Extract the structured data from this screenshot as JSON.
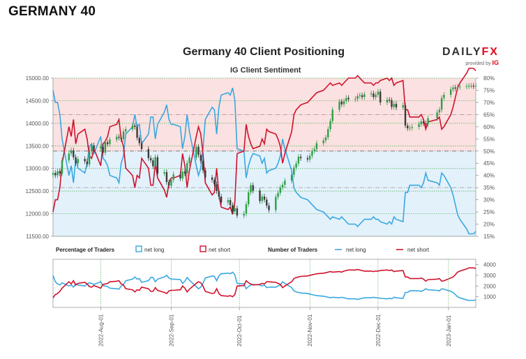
{
  "page": {
    "heading": "GERMANY 40"
  },
  "brand": {
    "word_left": "DAILY",
    "word_right": "FX",
    "provided_by": "provided by",
    "ig": "IG"
  },
  "colors": {
    "long": "#38a8e0",
    "short": "#d0112b",
    "bull": "#2f9e44",
    "bear": "#3a3a3a",
    "long_zone": "#e3f1fb",
    "short_zone": "#fbe1e1",
    "grid_green": "#4caf50"
  },
  "chart_data": [
    {
      "type": "line",
      "title": "Germany 40 Client Positioning",
      "subtitle": "IG Client Sentiment",
      "x_dates": [
        "2022-07-11",
        "2022-07-12",
        "2022-07-13",
        "2022-07-14",
        "2022-07-15",
        "2022-07-18",
        "2022-07-19",
        "2022-07-20",
        "2022-07-21",
        "2022-07-22",
        "2022-07-25",
        "2022-07-26",
        "2022-07-27",
        "2022-07-28",
        "2022-07-29",
        "2022-08-01",
        "2022-08-02",
        "2022-08-03",
        "2022-08-04",
        "2022-08-05",
        "2022-08-08",
        "2022-08-09",
        "2022-08-10",
        "2022-08-11",
        "2022-08-12",
        "2022-08-15",
        "2022-08-16",
        "2022-08-17",
        "2022-08-18",
        "2022-08-19",
        "2022-08-22",
        "2022-08-23",
        "2022-08-24",
        "2022-08-25",
        "2022-08-26",
        "2022-08-29",
        "2022-08-30",
        "2022-08-31",
        "2022-09-01",
        "2022-09-02",
        "2022-09-05",
        "2022-09-06",
        "2022-09-07",
        "2022-09-08",
        "2022-09-09",
        "2022-09-12",
        "2022-09-13",
        "2022-09-14",
        "2022-09-15",
        "2022-09-16",
        "2022-09-19",
        "2022-09-20",
        "2022-09-21",
        "2022-09-22",
        "2022-09-23",
        "2022-09-26",
        "2022-09-27",
        "2022-09-28",
        "2022-09-29",
        "2022-09-30",
        "2022-10-03",
        "2022-10-04",
        "2022-10-05",
        "2022-10-06",
        "2022-10-07",
        "2022-10-10",
        "2022-10-11",
        "2022-10-12",
        "2022-10-13",
        "2022-10-14",
        "2022-10-17",
        "2022-10-18",
        "2022-10-19",
        "2022-10-20",
        "2022-10-21",
        "2022-10-24",
        "2022-10-25",
        "2022-10-26",
        "2022-10-27",
        "2022-10-28",
        "2022-10-31",
        "2022-11-01",
        "2022-11-02",
        "2022-11-03",
        "2022-11-04",
        "2022-11-07",
        "2022-11-08",
        "2022-11-09",
        "2022-11-10",
        "2022-11-11",
        "2022-11-14",
        "2022-11-15",
        "2022-11-16",
        "2022-11-17",
        "2022-11-18",
        "2022-11-21",
        "2022-11-22",
        "2022-11-23",
        "2022-11-24",
        "2022-11-25",
        "2022-11-28",
        "2022-11-29",
        "2022-11-30",
        "2022-12-01",
        "2022-12-02",
        "2022-12-05",
        "2022-12-06",
        "2022-12-07",
        "2022-12-08",
        "2022-12-09",
        "2022-12-12",
        "2022-12-13",
        "2022-12-14",
        "2022-12-15",
        "2022-12-16",
        "2022-12-19",
        "2022-12-20",
        "2022-12-21",
        "2022-12-22",
        "2022-12-23",
        "2022-12-27",
        "2022-12-28",
        "2022-12-29",
        "2022-12-30",
        "2023-01-02",
        "2023-01-03",
        "2023-01-04",
        "2023-01-05",
        "2023-01-06",
        "2023-01-09",
        "2023-01-10",
        "2023-01-11",
        "2023-01-12",
        "2023-01-13"
      ],
      "x_ticks": [
        "2022-Aug-01",
        "2022-Sep-01",
        "2022-Oct-01",
        "2022-Nov-01",
        "2022-Dec-01",
        "2023-Jan-01"
      ],
      "x_tick_dates": [
        "2022-08-01",
        "2022-09-01",
        "2022-10-01",
        "2022-11-01",
        "2022-12-01",
        "2023-01-01"
      ],
      "price_axis": {
        "ylim": [
          11500,
          15000
        ],
        "ticks": [
          "11500.00",
          "12000.00",
          "12500.00",
          "13000.00",
          "13500.00",
          "14000.00",
          "14500.00",
          "15000.00"
        ]
      },
      "pct_axis": {
        "ylim": [
          15,
          80
        ],
        "ticks": [
          "15%",
          "20%",
          "25%",
          "30%",
          "35%",
          "40%",
          "45%",
          "50%",
          "55%",
          "60%",
          "65%",
          "70%",
          "75%",
          "80%"
        ]
      },
      "price_close": [
        12900,
        12850,
        12940,
        12890,
        13180,
        13330,
        13400,
        13250,
        13120,
        13210,
        13160,
        13090,
        13380,
        13510,
        13440,
        13480,
        13350,
        13580,
        13540,
        13640,
        13700,
        13680,
        13650,
        13820,
        13870,
        13950,
        13920,
        13680,
        13560,
        13430,
        13230,
        13180,
        13050,
        13250,
        12890,
        12920,
        12700,
        12620,
        12750,
        12870,
        12780,
        12930,
        12890,
        13120,
        13240,
        13480,
        13300,
        13170,
        12960,
        12800,
        12750,
        12650,
        12500,
        12380,
        12250,
        12300,
        12190,
        12050,
        12120,
        11960,
        12000,
        12210,
        12470,
        12630,
        12510,
        12280,
        12380,
        12310,
        12180,
        12080,
        12370,
        12460,
        12580,
        12640,
        12730,
        12860,
        13020,
        13110,
        13260,
        13230,
        13200,
        13280,
        13390,
        13430,
        13560,
        13620,
        13690,
        13870,
        14050,
        14300,
        14480,
        14420,
        14490,
        14560,
        14530,
        14540,
        14600,
        14620,
        14580,
        14640,
        14660,
        14580,
        14630,
        14700,
        14460,
        14520,
        14510,
        14360,
        14430,
        14350,
        14400,
        13950,
        13890,
        13900,
        13920,
        13980,
        14040,
        14000,
        13980,
        14110,
        14240,
        14300,
        14560,
        14630,
        14750,
        14790,
        14770,
        14800,
        14810,
        14820,
        14830,
        14830,
        14820,
        14830
      ],
      "series": [
        {
          "name": "net long",
          "values": [
            75,
            70,
            70,
            65,
            55,
            40,
            44,
            37,
            47,
            43,
            41,
            45,
            52,
            53,
            49,
            56,
            47,
            46,
            44,
            40,
            39,
            37,
            45,
            48,
            57,
            60,
            65,
            60,
            61,
            53,
            57,
            64,
            64,
            55,
            61,
            66,
            69,
            63,
            61,
            61,
            60,
            51,
            56,
            65,
            58,
            44,
            40,
            43,
            51,
            63,
            68,
            67,
            57,
            68,
            73,
            74,
            73,
            76,
            71,
            51,
            50,
            39,
            44,
            47,
            49,
            48,
            45,
            47,
            41,
            42,
            43,
            45,
            48,
            55,
            51,
            42,
            35,
            33,
            32,
            31,
            30,
            29,
            28,
            27,
            26,
            25,
            24,
            23,
            22,
            23,
            22,
            23,
            22,
            21,
            20,
            20,
            19,
            20,
            21,
            22,
            22,
            23,
            22,
            22,
            21,
            20,
            21,
            20,
            23,
            22,
            21,
            33,
            33,
            36,
            36,
            36,
            35,
            37,
            41,
            38,
            37,
            36,
            41,
            40,
            35,
            32,
            28,
            24,
            22,
            18,
            16,
            16,
            16,
            17
          ],
          "extra_short": "net short"
        },
        {
          "name": "net short",
          "values": [
            25,
            30,
            30,
            35,
            45,
            60,
            56,
            63,
            53,
            57,
            59,
            55,
            48,
            47,
            51,
            44,
            53,
            54,
            56,
            60,
            61,
            63,
            55,
            52,
            43,
            40,
            35,
            40,
            39,
            47,
            43,
            36,
            36,
            45,
            39,
            34,
            31,
            37,
            39,
            39,
            40,
            49,
            44,
            35,
            42,
            56,
            60,
            57,
            49,
            37,
            32,
            33,
            43,
            32,
            27,
            26,
            27,
            24,
            29,
            49,
            50,
            61,
            56,
            53,
            51,
            52,
            55,
            53,
            59,
            58,
            57,
            55,
            52,
            45,
            49,
            58,
            65,
            67,
            68,
            69,
            70,
            71,
            72,
            73,
            74,
            75,
            76,
            77,
            78,
            77,
            78,
            77,
            78,
            79,
            80,
            80,
            81,
            80,
            79,
            78,
            78,
            77,
            78,
            78,
            79,
            80,
            79,
            80,
            77,
            78,
            79,
            67,
            67,
            64,
            64,
            64,
            65,
            63,
            59,
            62,
            63,
            64,
            59,
            60,
            65,
            68,
            72,
            76,
            78,
            82,
            84,
            84,
            84,
            83
          ]
        }
      ],
      "lower_panel": {
        "ylim": [
          0,
          4500
        ],
        "ticks": [
          "1000",
          "2000",
          "3000",
          "4000"
        ],
        "legend_percentage": "Percentage of Traders",
        "legend_number": "Number of Traders",
        "long_name": "net long",
        "short_name": "net short",
        "long_counts": [
          3000,
          2400,
          2200,
          2100,
          2300,
          2000,
          2100,
          1900,
          2200,
          2100,
          2000,
          2200,
          2300,
          2250,
          2150,
          2400,
          2050,
          2000,
          1950,
          1800,
          1750,
          1700,
          2000,
          2150,
          2500,
          2650,
          2850,
          2650,
          2700,
          2350,
          2500,
          2800,
          2800,
          2400,
          2650,
          2850,
          3000,
          2750,
          2650,
          2650,
          2600,
          2250,
          2450,
          2800,
          2550,
          1950,
          1750,
          1900,
          2250,
          2750,
          2950,
          2900,
          2500,
          2950,
          3150,
          3200,
          3150,
          3300,
          3050,
          2250,
          2200,
          1750,
          1950,
          2100,
          2150,
          2100,
          2000,
          2100,
          1850,
          1900,
          1900,
          2000,
          2100,
          2400,
          2250,
          1850,
          1550,
          1450,
          1400,
          1350,
          1300,
          1250,
          1200,
          1150,
          1100,
          1050,
          1000,
          950,
          900,
          950,
          900,
          950,
          900,
          850,
          800,
          800,
          750,
          800,
          850,
          900,
          900,
          950,
          900,
          900,
          850,
          800,
          850,
          800,
          950,
          900,
          850,
          1400,
          1400,
          1550,
          1550,
          1550,
          1500,
          1600,
          1750,
          1650,
          1600,
          1550,
          1750,
          1700,
          1500,
          1400,
          1200,
          1000,
          900,
          700,
          650,
          650,
          650,
          700
        ],
        "short_counts": [
          900,
          1200,
          1300,
          1500,
          1800,
          2400,
          2200,
          2500,
          2100,
          2250,
          2350,
          2200,
          1950,
          1900,
          2050,
          1800,
          2150,
          2200,
          2250,
          2400,
          2450,
          2500,
          2200,
          2100,
          1750,
          1650,
          1450,
          1650,
          1600,
          1900,
          1750,
          1500,
          1500,
          1850,
          1600,
          1400,
          1300,
          1550,
          1600,
          1600,
          1650,
          2000,
          1800,
          1450,
          1700,
          2250,
          2400,
          2300,
          2000,
          1500,
          1300,
          1350,
          1750,
          1300,
          1100,
          1050,
          1100,
          1000,
          1200,
          2000,
          2050,
          2500,
          2300,
          2200,
          2100,
          2150,
          2250,
          2200,
          2400,
          2400,
          2350,
          2250,
          2150,
          1850,
          2000,
          2400,
          2700,
          2800,
          2850,
          2900,
          2950,
          3000,
          3050,
          3100,
          3150,
          3200,
          3250,
          3300,
          3350,
          3300,
          3350,
          3300,
          3400,
          3450,
          3500,
          3500,
          3550,
          3500,
          3450,
          3400,
          3400,
          3350,
          3400,
          3400,
          3450,
          3500,
          3450,
          3500,
          3350,
          3400,
          3450,
          2850,
          2850,
          2700,
          2700,
          2700,
          2750,
          2650,
          2450,
          2600,
          2650,
          2700,
          2450,
          2500,
          2750,
          2850,
          3050,
          3300,
          3400,
          3600,
          3700,
          3700,
          3700,
          3650
        ]
      }
    }
  ]
}
